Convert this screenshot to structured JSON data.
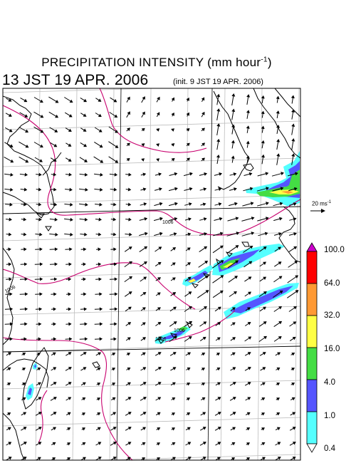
{
  "title": {
    "main": "PRECIPITATION INTENSITY (mm hour",
    "sup": "-1",
    "close": ")",
    "datetime": "13 JST 19 APR. 2006",
    "init": "(init. 9 JST 19 APR. 2006)"
  },
  "reference_vector": {
    "label": "20 ms",
    "sup": "-1"
  },
  "colorbar": {
    "levels": [
      "100.0",
      "64.0",
      "32.0",
      "16.0",
      "4.0",
      "1.0",
      "0.4"
    ],
    "colors": [
      "#cc00cc",
      "#ff0000",
      "#ff9933",
      "#ffff44",
      "#44dd44",
      "#5555ff",
      "#55ffff"
    ]
  },
  "isobars": [
    {
      "label": "1006"
    },
    {
      "label": "1006"
    },
    {
      "label": "1006"
    },
    {
      "label": "1006"
    }
  ]
}
